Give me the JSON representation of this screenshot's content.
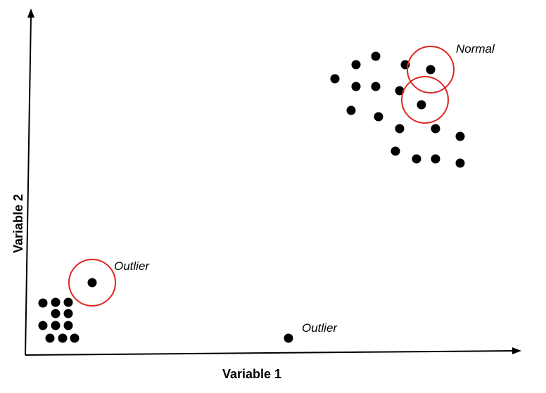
{
  "diagram": {
    "x_axis_label": "Variable 1",
    "y_axis_label": "Variable 2",
    "annotations": [
      {
        "text": "Normal"
      },
      {
        "text": "Outlier"
      },
      {
        "text": "Outlier"
      }
    ],
    "ring_color": "#e0261f",
    "point_color": "#000000"
  }
}
